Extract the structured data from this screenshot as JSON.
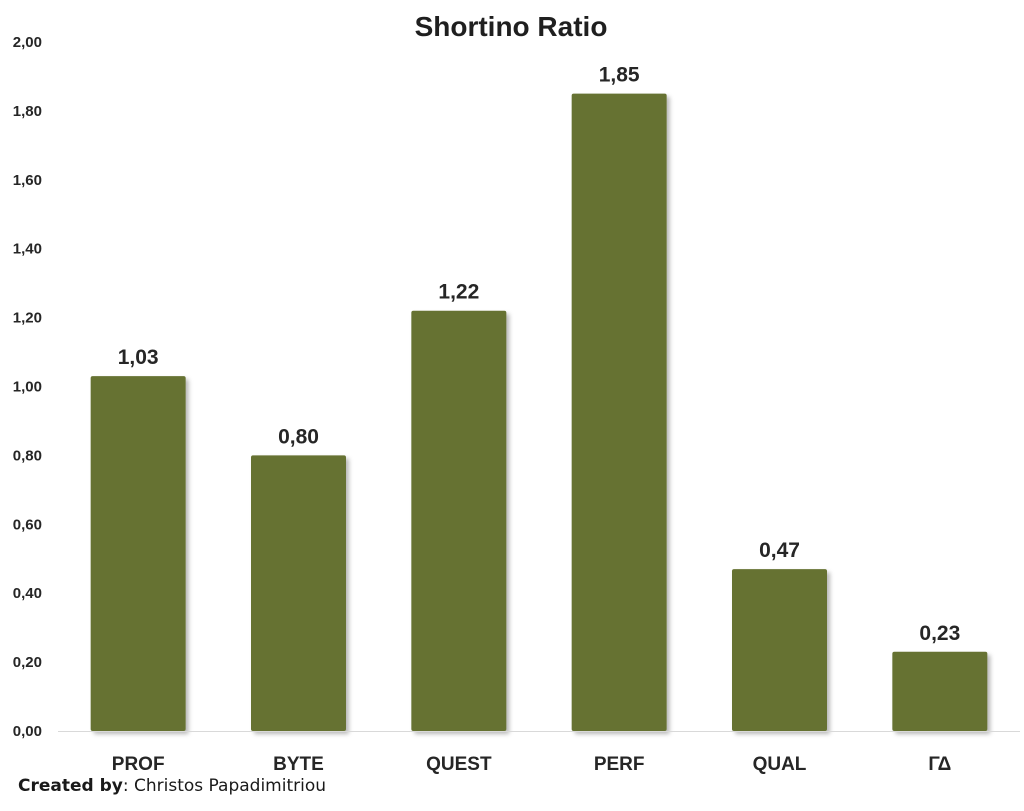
{
  "chart_data": {
    "type": "bar",
    "title": "Shortino Ratio",
    "categories": [
      "PROF",
      "BYTE",
      "QUEST",
      "PERF",
      "QUAL",
      "ΓΔ"
    ],
    "values": [
      1.03,
      0.8,
      1.22,
      1.85,
      0.47,
      0.23
    ],
    "data_labels": [
      "1,03",
      "0,80",
      "1,22",
      "1,85",
      "0,47",
      "0,23"
    ],
    "y_ticks": [
      0,
      0.2,
      0.4,
      0.6,
      0.8,
      1.0,
      1.2,
      1.4,
      1.6,
      1.8,
      2.0
    ],
    "y_tick_labels": [
      "0,00",
      "0,20",
      "0,40",
      "0,60",
      "0,80",
      "1,00",
      "1,20",
      "1,40",
      "1,60",
      "1,80",
      "2,00"
    ],
    "ylim": [
      0,
      2.0
    ],
    "xlabel": "",
    "ylabel": "",
    "grid": false,
    "legend": "none",
    "bar_color": "#667233"
  },
  "credit": {
    "label": "Created by",
    "separator": ": ",
    "author": "Christos Papadimitriou"
  }
}
